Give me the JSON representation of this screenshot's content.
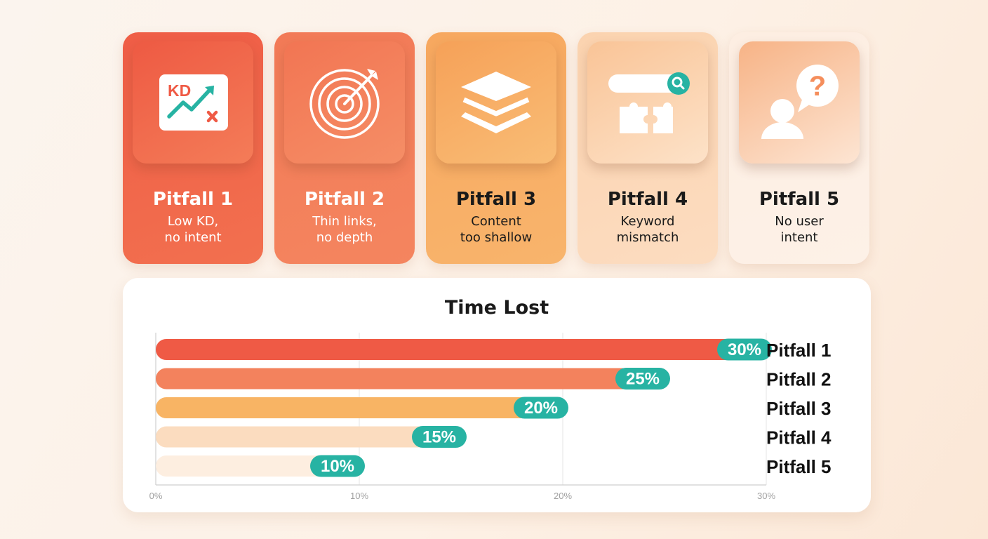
{
  "cards": [
    {
      "title": "Pitfall 1",
      "subtitle_line1": "Low KD,",
      "subtitle_line2": "no intent",
      "icon": "kd-chart-icon",
      "icon_text": "KD",
      "card_bg": "linear-gradient(160deg,#ef5d46 0%,#f2704f 100%)",
      "tile_bg": "linear-gradient(150deg,#ee5a43 0%,#f47c58 100%)",
      "text_color": "#ffffff"
    },
    {
      "title": "Pitfall 2",
      "subtitle_line1": "Thin links,",
      "subtitle_line2": "no depth",
      "icon": "target-icon",
      "card_bg": "linear-gradient(160deg,#f27a57 0%,#f4855f 100%)",
      "tile_bg": "linear-gradient(150deg,#f27553 0%,#f58e66 100%)",
      "text_color": "#ffffff"
    },
    {
      "title": "Pitfall 3",
      "subtitle_line1": "Content",
      "subtitle_line2": "too shallow",
      "icon": "layers-icon",
      "card_bg": "linear-gradient(160deg,#f7a85f 0%,#f8b46c 100%)",
      "tile_bg": "linear-gradient(150deg,#f6a158 0%,#f9bd76 100%)",
      "text_color": "#1a1a1a"
    },
    {
      "title": "Pitfall 4",
      "subtitle_line1": "Keyword",
      "subtitle_line2": "mismatch",
      "icon": "search-puzzle-icon",
      "card_bg": "linear-gradient(160deg,#fbd3af 0%,#fcdcc0 100%)",
      "tile_bg": "linear-gradient(150deg,#f9c497 0%,#fde2c8 100%)",
      "text_color": "#1a1a1a"
    },
    {
      "title": "Pitfall 5",
      "subtitle_line1": "No user",
      "subtitle_line2": "intent",
      "icon": "user-question-icon",
      "card_bg": "linear-gradient(160deg,#fdeee2 0%,#fdf1e7 100%)",
      "tile_bg": "linear-gradient(150deg,#f7b386 0%,#fde5d3 100%)",
      "text_color": "#1a1a1a"
    }
  ],
  "colors": {
    "badge": "#27b3a3",
    "bar_1": "#ef5a45",
    "bar_2": "#f3825d",
    "bar_3": "#f8b464",
    "bar_4": "#fbdcbf",
    "bar_5": "#fdeee0",
    "grid": "#e6e6e6",
    "axis": "#cfcfcf",
    "tick_text": "#a0a0a0"
  },
  "chart_data": {
    "type": "bar",
    "orientation": "horizontal",
    "title": "Time Lost",
    "categories": [
      "Pitfall 1",
      "Pitfall 2",
      "Pitfall 3",
      "Pitfall 4",
      "Pitfall 5"
    ],
    "values": [
      30,
      25,
      20,
      15,
      10
    ],
    "value_labels": [
      "30%",
      "25%",
      "20%",
      "15%",
      "10%"
    ],
    "xlim": [
      0,
      30
    ],
    "x_ticks": [
      0,
      10,
      20,
      30
    ],
    "x_tick_labels": [
      "0%",
      "10%",
      "20%",
      "30%"
    ],
    "grid": true,
    "category_labels_position": "right"
  }
}
